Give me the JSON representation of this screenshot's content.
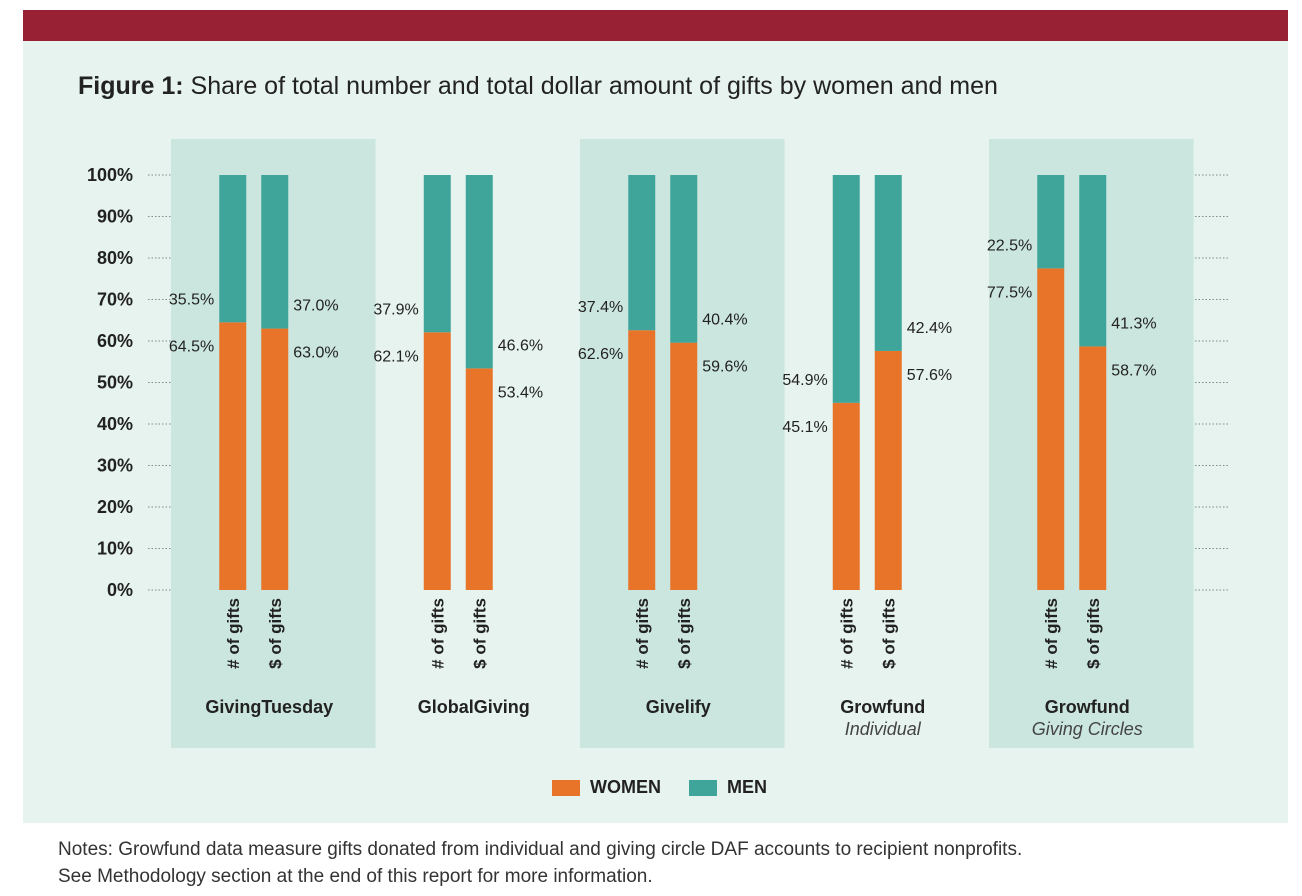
{
  "figure": {
    "label": "Figure 1:",
    "title": " Share of total number and total dollar amount of gifts by women and men"
  },
  "colors": {
    "women": "#e8742a",
    "men": "#3fa59b",
    "band": "#cbe6de",
    "panel": "#e6f3ef",
    "header": "#982233"
  },
  "chart_data": {
    "type": "bar",
    "stacked": true,
    "title": "Share of total number and total dollar amount of gifts by women and men",
    "ylim": [
      0,
      100
    ],
    "yticks": [
      "0%",
      "10%",
      "20%",
      "30%",
      "40%",
      "50%",
      "60%",
      "70%",
      "80%",
      "90%",
      "100%"
    ],
    "groups": [
      {
        "name": "GivingTuesday",
        "subtitle": "",
        "bars": [
          {
            "label": "# of gifts",
            "women": 64.5,
            "men": 35.5,
            "women_label": "64.5%",
            "men_label": "35.5%"
          },
          {
            "label": "$ of gifts",
            "women": 63.0,
            "men": 37.0,
            "women_label": "63.0%",
            "men_label": "37.0%"
          }
        ]
      },
      {
        "name": "GlobalGiving",
        "subtitle": "",
        "bars": [
          {
            "label": "# of gifts",
            "women": 62.1,
            "men": 37.9,
            "women_label": "62.1%",
            "men_label": "37.9%"
          },
          {
            "label": "$ of gifts",
            "women": 53.4,
            "men": 46.6,
            "women_label": "53.4%",
            "men_label": "46.6%"
          }
        ]
      },
      {
        "name": "Givelify",
        "subtitle": "",
        "bars": [
          {
            "label": "# of gifts",
            "women": 62.6,
            "men": 37.4,
            "women_label": "62.6%",
            "men_label": "37.4%"
          },
          {
            "label": "$ of gifts",
            "women": 59.6,
            "men": 40.4,
            "women_label": "59.6%",
            "men_label": "40.4%"
          }
        ]
      },
      {
        "name": "Growfund",
        "subtitle": "Individual",
        "bars": [
          {
            "label": "# of gifts",
            "women": 45.1,
            "men": 54.9,
            "women_label": "45.1%",
            "men_label": "54.9%"
          },
          {
            "label": "$ of gifts",
            "women": 57.6,
            "men": 42.4,
            "women_label": "57.6%",
            "men_label": "42.4%"
          }
        ]
      },
      {
        "name": "Growfund",
        "subtitle": "Giving Circles",
        "bars": [
          {
            "label": "# of gifts",
            "women": 77.5,
            "men": 22.5,
            "women_label": "77.5%",
            "men_label": "22.5%"
          },
          {
            "label": "$ of gifts",
            "women": 58.7,
            "men": 41.3,
            "women_label": "58.7%",
            "men_label": "41.3%"
          }
        ]
      }
    ],
    "legend": {
      "women": "WOMEN",
      "men": "MEN"
    }
  },
  "notes": {
    "line1": "Notes: Growfund data measure gifts donated from individual and giving circle DAF accounts to recipient nonprofits.",
    "line2": "See Methodology section at the end of this report for more information."
  }
}
